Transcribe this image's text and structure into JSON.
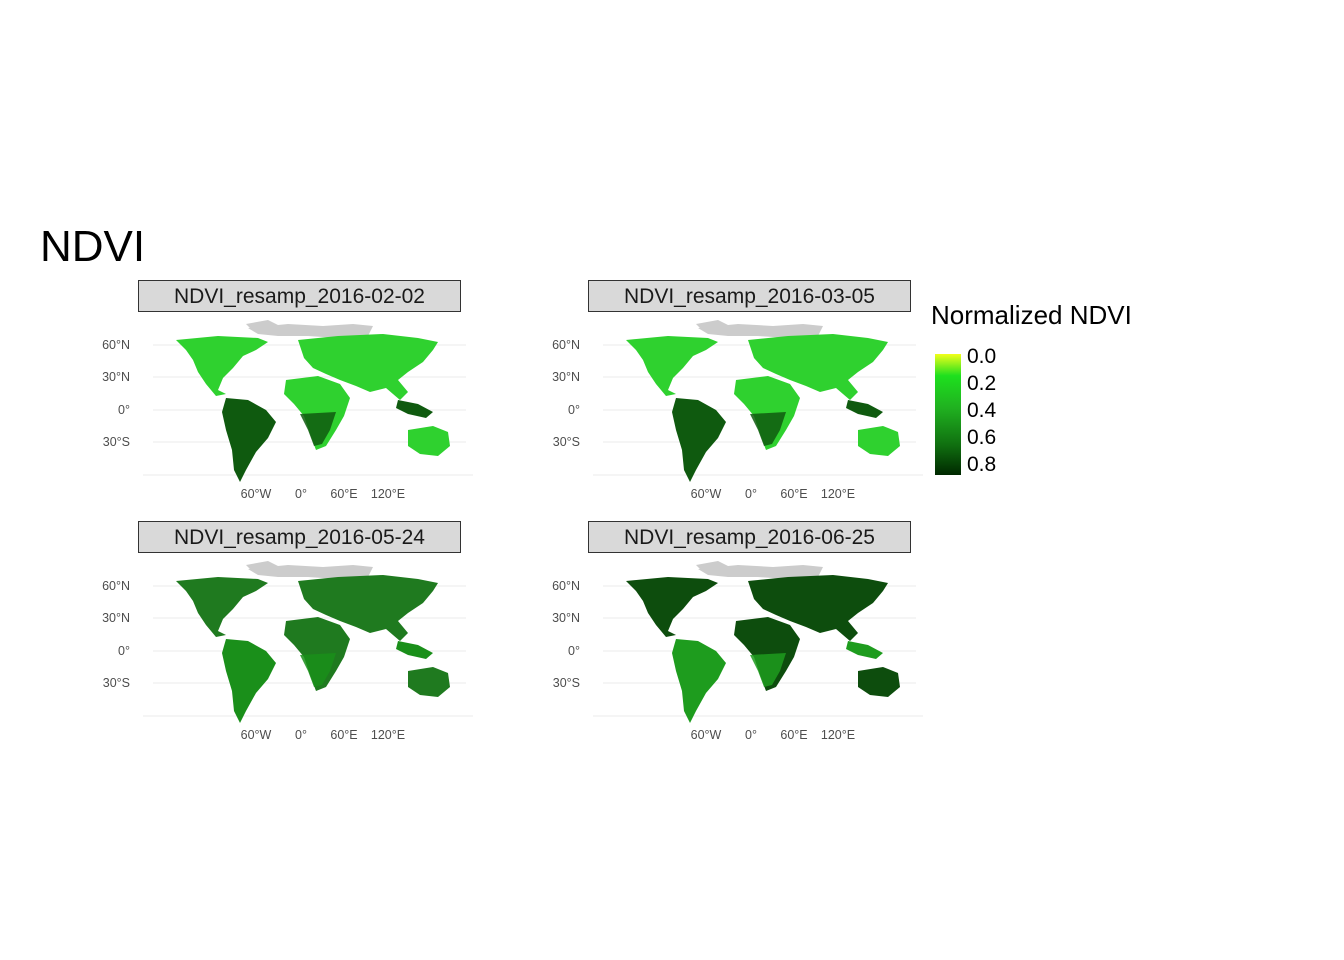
{
  "title": "NDVI",
  "legend": {
    "title": "Normalized NDVI",
    "ticks": [
      "0.0",
      "0.2",
      "0.4",
      "0.6",
      "0.8"
    ],
    "colors": [
      "#f2ff1a",
      "#1ee01e",
      "#20b020",
      "#107010",
      "#002800"
    ]
  },
  "axes": {
    "y_labels": [
      "60°N",
      "30°N",
      "0°",
      "30°S"
    ],
    "x_labels": [
      "60°W",
      "0°",
      "60°E",
      "120°E"
    ]
  },
  "panels": [
    {
      "label": "NDVI_resamp_2016-02-02",
      "north_tint": "#2fd12f",
      "south_tint": "#0f5a0f"
    },
    {
      "label": "NDVI_resamp_2016-03-05",
      "north_tint": "#2fd12f",
      "south_tint": "#0f5a0f"
    },
    {
      "label": "NDVI_resamp_2016-05-24",
      "north_tint": "#1f7a1f",
      "south_tint": "#1a8f1a"
    },
    {
      "label": "NDVI_resamp_2016-06-25",
      "north_tint": "#0d4d0d",
      "south_tint": "#1e9c1e"
    }
  ],
  "colors": {
    "ice": "#cccccc",
    "grid": "#ebebeb",
    "strip_bg": "#d9d9d9"
  }
}
